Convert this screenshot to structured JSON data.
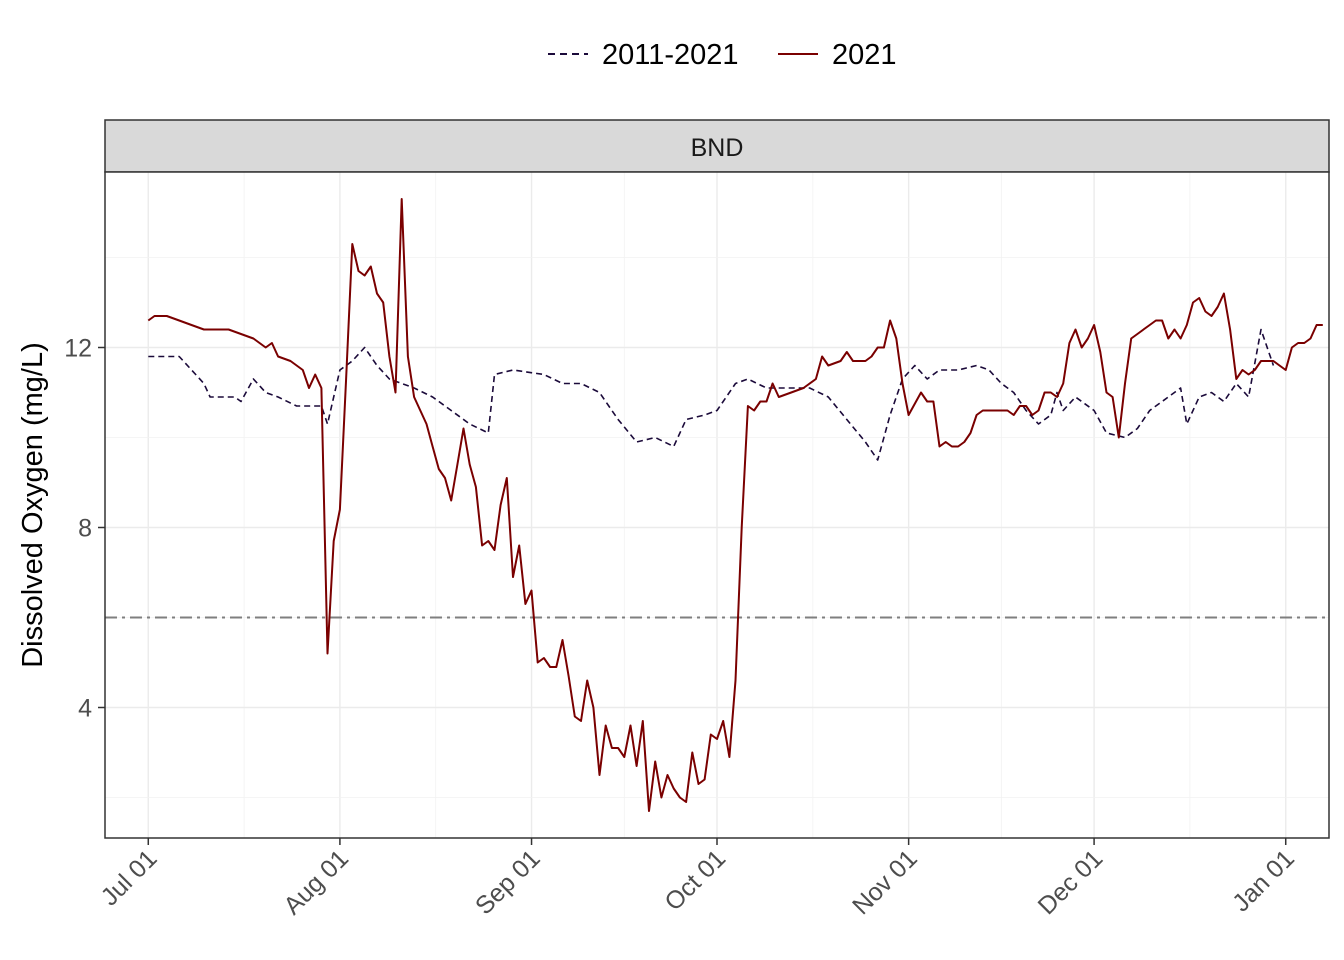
{
  "chart_data": {
    "type": "line",
    "facet": "BND",
    "xlabel": "",
    "ylabel": "Dissolved Oxygen (mg/L)",
    "x_tick_labels": [
      "Jul 01",
      "Aug 01",
      "Sep 01",
      "Oct 01",
      "Nov 01",
      "Dec 01",
      "Jan 01"
    ],
    "x_tick_dates": [
      "2021-07-01",
      "2021-08-01",
      "2021-09-01",
      "2021-10-01",
      "2021-11-01",
      "2021-12-01",
      "2022-01-01"
    ],
    "xlim": [
      "2021-06-24",
      "2022-01-08"
    ],
    "y_ticks": [
      4,
      8,
      12
    ],
    "ylim": [
      1.1,
      15.9
    ],
    "grid": true,
    "legend_position": "top",
    "threshold": {
      "value": 6,
      "style": "dash-dot",
      "color": "#7f7f7f"
    },
    "series": [
      {
        "name": "2011-2021",
        "color": "#1b0a3a",
        "style": "dashed",
        "points": [
          [
            "2021-07-01",
            11.8
          ],
          [
            "2021-07-06",
            11.8
          ],
          [
            "2021-07-10",
            11.2
          ],
          [
            "2021-07-11",
            10.9
          ],
          [
            "2021-07-15",
            10.9
          ],
          [
            "2021-07-16",
            10.8
          ],
          [
            "2021-07-18",
            11.3
          ],
          [
            "2021-07-20",
            11.0
          ],
          [
            "2021-07-22",
            10.9
          ],
          [
            "2021-07-25",
            10.7
          ],
          [
            "2021-07-29",
            10.7
          ],
          [
            "2021-07-30",
            10.3
          ],
          [
            "2021-08-01",
            11.5
          ],
          [
            "2021-08-03",
            11.7
          ],
          [
            "2021-08-05",
            12.0
          ],
          [
            "2021-08-07",
            11.6
          ],
          [
            "2021-08-09",
            11.3
          ],
          [
            "2021-08-13",
            11.1
          ],
          [
            "2021-08-16",
            10.9
          ],
          [
            "2021-08-19",
            10.6
          ],
          [
            "2021-08-22",
            10.3
          ],
          [
            "2021-08-25",
            10.1
          ],
          [
            "2021-08-26",
            11.4
          ],
          [
            "2021-08-29",
            11.5
          ],
          [
            "2021-09-03",
            11.4
          ],
          [
            "2021-09-06",
            11.2
          ],
          [
            "2021-09-09",
            11.2
          ],
          [
            "2021-09-12",
            11.0
          ],
          [
            "2021-09-15",
            10.4
          ],
          [
            "2021-09-18",
            9.9
          ],
          [
            "2021-09-21",
            10.0
          ],
          [
            "2021-09-24",
            9.8
          ],
          [
            "2021-09-26",
            10.4
          ],
          [
            "2021-09-29",
            10.5
          ],
          [
            "2021-10-01",
            10.6
          ],
          [
            "2021-10-04",
            11.2
          ],
          [
            "2021-10-06",
            11.3
          ],
          [
            "2021-10-09",
            11.1
          ],
          [
            "2021-10-12",
            11.1
          ],
          [
            "2021-10-16",
            11.1
          ],
          [
            "2021-10-19",
            10.9
          ],
          [
            "2021-10-22",
            10.4
          ],
          [
            "2021-10-25",
            9.9
          ],
          [
            "2021-10-27",
            9.5
          ],
          [
            "2021-10-29",
            10.5
          ],
          [
            "2021-10-31",
            11.3
          ],
          [
            "2021-11-02",
            11.6
          ],
          [
            "2021-11-04",
            11.3
          ],
          [
            "2021-11-06",
            11.5
          ],
          [
            "2021-11-09",
            11.5
          ],
          [
            "2021-11-12",
            11.6
          ],
          [
            "2021-11-14",
            11.5
          ],
          [
            "2021-11-16",
            11.2
          ],
          [
            "2021-11-18",
            11.0
          ],
          [
            "2021-11-20",
            10.6
          ],
          [
            "2021-11-22",
            10.3
          ],
          [
            "2021-11-24",
            10.5
          ],
          [
            "2021-11-25",
            11.0
          ],
          [
            "2021-11-26",
            10.6
          ],
          [
            "2021-11-28",
            10.9
          ],
          [
            "2021-12-01",
            10.6
          ],
          [
            "2021-12-03",
            10.1
          ],
          [
            "2021-12-06",
            10.0
          ],
          [
            "2021-12-08",
            10.2
          ],
          [
            "2021-12-10",
            10.6
          ],
          [
            "2021-12-13",
            10.9
          ],
          [
            "2021-12-15",
            11.1
          ],
          [
            "2021-12-16",
            10.3
          ],
          [
            "2021-12-18",
            10.9
          ],
          [
            "2021-12-20",
            11.0
          ],
          [
            "2021-12-22",
            10.8
          ],
          [
            "2021-12-24",
            11.2
          ],
          [
            "2021-12-26",
            10.9
          ],
          [
            "2021-12-28",
            12.4
          ],
          [
            "2021-12-30",
            11.6
          ]
        ]
      },
      {
        "name": "2021",
        "color": "#7a0000",
        "style": "solid",
        "points": [
          [
            "2021-07-01",
            12.6
          ],
          [
            "2021-07-02",
            12.7
          ],
          [
            "2021-07-04",
            12.7
          ],
          [
            "2021-07-06",
            12.6
          ],
          [
            "2021-07-08",
            12.5
          ],
          [
            "2021-07-10",
            12.4
          ],
          [
            "2021-07-12",
            12.4
          ],
          [
            "2021-07-14",
            12.4
          ],
          [
            "2021-07-16",
            12.3
          ],
          [
            "2021-07-18",
            12.2
          ],
          [
            "2021-07-20",
            12.0
          ],
          [
            "2021-07-21",
            12.1
          ],
          [
            "2021-07-22",
            11.8
          ],
          [
            "2021-07-24",
            11.7
          ],
          [
            "2021-07-26",
            11.5
          ],
          [
            "2021-07-27",
            11.1
          ],
          [
            "2021-07-28",
            11.4
          ],
          [
            "2021-07-29",
            11.1
          ],
          [
            "2021-07-30",
            5.2
          ],
          [
            "2021-07-31",
            7.7
          ],
          [
            "2021-08-01",
            8.4
          ],
          [
            "2021-08-02",
            11.3
          ],
          [
            "2021-08-03",
            14.3
          ],
          [
            "2021-08-04",
            13.7
          ],
          [
            "2021-08-05",
            13.6
          ],
          [
            "2021-08-06",
            13.8
          ],
          [
            "2021-08-07",
            13.2
          ],
          [
            "2021-08-08",
            13.0
          ],
          [
            "2021-08-09",
            11.8
          ],
          [
            "2021-08-10",
            11.0
          ],
          [
            "2021-08-11",
            15.3
          ],
          [
            "2021-08-12",
            11.8
          ],
          [
            "2021-08-13",
            10.9
          ],
          [
            "2021-08-14",
            10.6
          ],
          [
            "2021-08-15",
            10.3
          ],
          [
            "2021-08-16",
            9.8
          ],
          [
            "2021-08-17",
            9.3
          ],
          [
            "2021-08-18",
            9.1
          ],
          [
            "2021-08-19",
            8.6
          ],
          [
            "2021-08-20",
            9.4
          ],
          [
            "2021-08-21",
            10.2
          ],
          [
            "2021-08-22",
            9.4
          ],
          [
            "2021-08-23",
            8.9
          ],
          [
            "2021-08-24",
            7.6
          ],
          [
            "2021-08-25",
            7.7
          ],
          [
            "2021-08-26",
            7.5
          ],
          [
            "2021-08-27",
            8.5
          ],
          [
            "2021-08-28",
            9.1
          ],
          [
            "2021-08-29",
            6.9
          ],
          [
            "2021-08-30",
            7.6
          ],
          [
            "2021-08-31",
            6.3
          ],
          [
            "2021-09-01",
            6.6
          ],
          [
            "2021-09-02",
            5.0
          ],
          [
            "2021-09-03",
            5.1
          ],
          [
            "2021-09-04",
            4.9
          ],
          [
            "2021-09-05",
            4.9
          ],
          [
            "2021-09-06",
            5.5
          ],
          [
            "2021-09-07",
            4.7
          ],
          [
            "2021-09-08",
            3.8
          ],
          [
            "2021-09-09",
            3.7
          ],
          [
            "2021-09-10",
            4.6
          ],
          [
            "2021-09-11",
            4.0
          ],
          [
            "2021-09-12",
            2.5
          ],
          [
            "2021-09-13",
            3.6
          ],
          [
            "2021-09-14",
            3.1
          ],
          [
            "2021-09-15",
            3.1
          ],
          [
            "2021-09-16",
            2.9
          ],
          [
            "2021-09-17",
            3.6
          ],
          [
            "2021-09-18",
            2.7
          ],
          [
            "2021-09-19",
            3.7
          ],
          [
            "2021-09-20",
            1.7
          ],
          [
            "2021-09-21",
            2.8
          ],
          [
            "2021-09-22",
            2.0
          ],
          [
            "2021-09-23",
            2.5
          ],
          [
            "2021-09-24",
            2.2
          ],
          [
            "2021-09-25",
            2.0
          ],
          [
            "2021-09-26",
            1.9
          ],
          [
            "2021-09-27",
            3.0
          ],
          [
            "2021-09-28",
            2.3
          ],
          [
            "2021-09-29",
            2.4
          ],
          [
            "2021-09-30",
            3.4
          ],
          [
            "2021-10-01",
            3.3
          ],
          [
            "2021-10-02",
            3.7
          ],
          [
            "2021-10-03",
            2.9
          ],
          [
            "2021-10-04",
            4.6
          ],
          [
            "2021-10-05",
            8.0
          ],
          [
            "2021-10-06",
            10.7
          ],
          [
            "2021-10-07",
            10.6
          ],
          [
            "2021-10-08",
            10.8
          ],
          [
            "2021-10-09",
            10.8
          ],
          [
            "2021-10-10",
            11.2
          ],
          [
            "2021-10-11",
            10.9
          ],
          [
            "2021-10-13",
            11.0
          ],
          [
            "2021-10-15",
            11.1
          ],
          [
            "2021-10-17",
            11.3
          ],
          [
            "2021-10-18",
            11.8
          ],
          [
            "2021-10-19",
            11.6
          ],
          [
            "2021-10-21",
            11.7
          ],
          [
            "2021-10-22",
            11.9
          ],
          [
            "2021-10-23",
            11.7
          ],
          [
            "2021-10-25",
            11.7
          ],
          [
            "2021-10-26",
            11.8
          ],
          [
            "2021-10-27",
            12.0
          ],
          [
            "2021-10-28",
            12.0
          ],
          [
            "2021-10-29",
            12.6
          ],
          [
            "2021-10-30",
            12.2
          ],
          [
            "2021-10-31",
            11.2
          ],
          [
            "2021-11-01",
            10.5
          ],
          [
            "2021-11-03",
            11.0
          ],
          [
            "2021-11-04",
            10.8
          ],
          [
            "2021-11-05",
            10.8
          ],
          [
            "2021-11-06",
            9.8
          ],
          [
            "2021-11-07",
            9.9
          ],
          [
            "2021-11-08",
            9.8
          ],
          [
            "2021-11-09",
            9.8
          ],
          [
            "2021-11-10",
            9.9
          ],
          [
            "2021-11-11",
            10.1
          ],
          [
            "2021-11-12",
            10.5
          ],
          [
            "2021-11-13",
            10.6
          ],
          [
            "2021-11-15",
            10.6
          ],
          [
            "2021-11-17",
            10.6
          ],
          [
            "2021-11-18",
            10.5
          ],
          [
            "2021-11-19",
            10.7
          ],
          [
            "2021-11-20",
            10.7
          ],
          [
            "2021-11-21",
            10.5
          ],
          [
            "2021-11-22",
            10.6
          ],
          [
            "2021-11-23",
            11.0
          ],
          [
            "2021-11-24",
            11.0
          ],
          [
            "2021-11-25",
            10.9
          ],
          [
            "2021-11-26",
            11.2
          ],
          [
            "2021-11-27",
            12.1
          ],
          [
            "2021-11-28",
            12.4
          ],
          [
            "2021-11-29",
            12.0
          ],
          [
            "2021-11-30",
            12.2
          ],
          [
            "2021-12-01",
            12.5
          ],
          [
            "2021-12-02",
            11.9
          ],
          [
            "2021-12-03",
            11.0
          ],
          [
            "2021-12-04",
            10.9
          ],
          [
            "2021-12-05",
            10.0
          ],
          [
            "2021-12-06",
            11.2
          ],
          [
            "2021-12-07",
            12.2
          ],
          [
            "2021-12-08",
            12.3
          ],
          [
            "2021-12-09",
            12.4
          ],
          [
            "2021-12-10",
            12.5
          ],
          [
            "2021-12-11",
            12.6
          ],
          [
            "2021-12-12",
            12.6
          ],
          [
            "2021-12-13",
            12.2
          ],
          [
            "2021-12-14",
            12.4
          ],
          [
            "2021-12-15",
            12.2
          ],
          [
            "2021-12-16",
            12.5
          ],
          [
            "2021-12-17",
            13.0
          ],
          [
            "2021-12-18",
            13.1
          ],
          [
            "2021-12-19",
            12.8
          ],
          [
            "2021-12-20",
            12.7
          ],
          [
            "2021-12-21",
            12.9
          ],
          [
            "2021-12-22",
            13.2
          ],
          [
            "2021-12-23",
            12.4
          ],
          [
            "2021-12-24",
            11.3
          ],
          [
            "2021-12-25",
            11.5
          ],
          [
            "2021-12-26",
            11.4
          ],
          [
            "2021-12-27",
            11.5
          ],
          [
            "2021-12-28",
            11.7
          ],
          [
            "2021-12-29",
            11.7
          ],
          [
            "2021-12-30",
            11.7
          ],
          [
            "2021-12-31",
            11.6
          ],
          [
            "2022-01-01",
            11.5
          ],
          [
            "2022-01-02",
            12.0
          ],
          [
            "2022-01-03",
            12.1
          ],
          [
            "2022-01-04",
            12.1
          ],
          [
            "2022-01-05",
            12.2
          ],
          [
            "2022-01-06",
            12.5
          ],
          [
            "2022-01-07",
            12.5
          ]
        ]
      }
    ]
  }
}
